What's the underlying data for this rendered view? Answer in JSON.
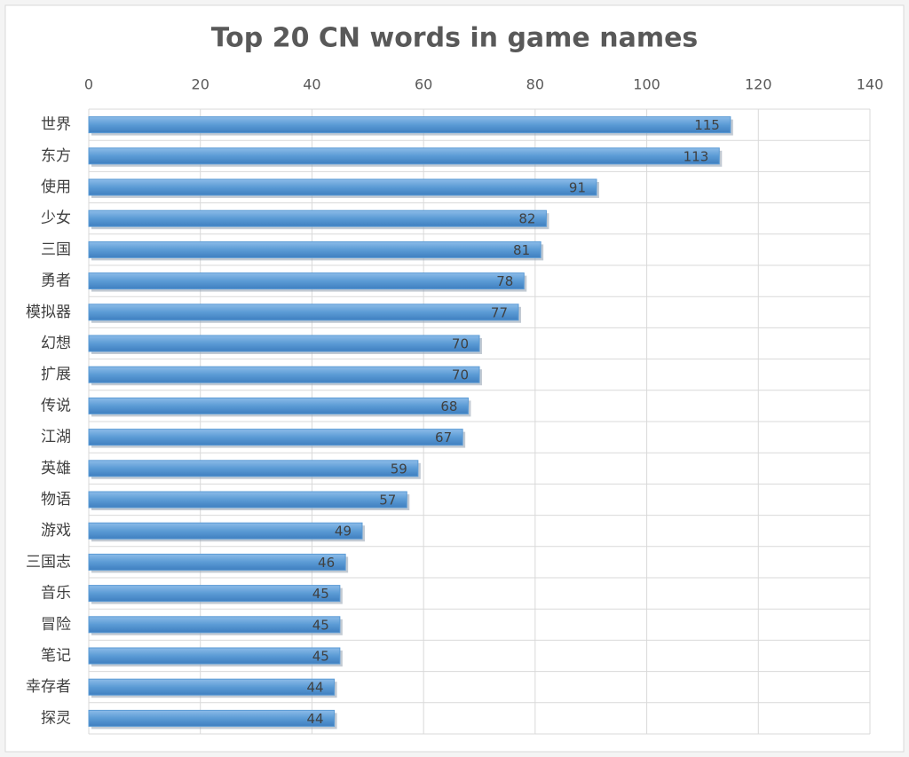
{
  "chart_data": {
    "type": "bar",
    "orientation": "horizontal",
    "title": "Top 20 CN words in game names",
    "categories": [
      "世界",
      "东方",
      "使用",
      "少女",
      "三国",
      "勇者",
      "模拟器",
      "幻想",
      "扩展",
      "传说",
      "江湖",
      "英雄",
      "物语",
      "游戏",
      "三国志",
      "音乐",
      "冒险",
      "笔记",
      "幸存者",
      "探灵"
    ],
    "values": [
      115,
      113,
      91,
      82,
      81,
      78,
      77,
      70,
      70,
      68,
      67,
      59,
      57,
      49,
      46,
      45,
      45,
      45,
      44,
      44
    ],
    "color": "#5b9bd5",
    "xlim": [
      0,
      140
    ],
    "xticks": [
      0,
      20,
      40,
      60,
      80,
      100,
      120,
      140
    ],
    "grid": true
  }
}
